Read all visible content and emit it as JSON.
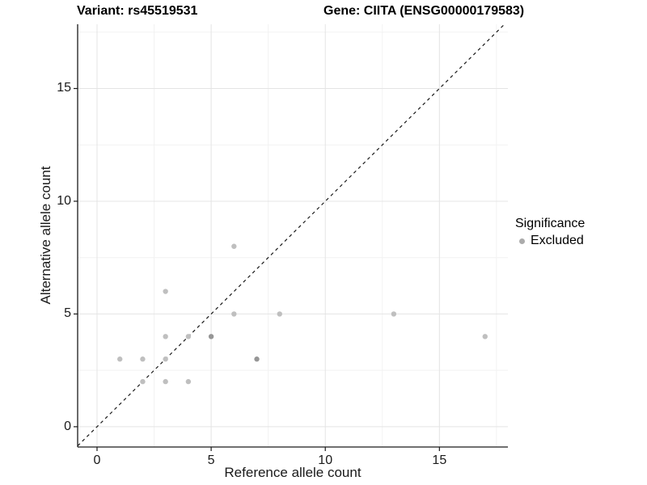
{
  "chart_data": {
    "type": "scatter",
    "title_left": "Variant: rs45519531",
    "title_right": "Gene: CIITA (ENSG00000179583)",
    "xlabel": "Reference allele count",
    "ylabel": "Alternative allele count",
    "xlim": [
      -0.85,
      18.0
    ],
    "ylim": [
      -0.9,
      17.85
    ],
    "x_ticks": [
      0,
      5,
      10,
      15
    ],
    "y_ticks": [
      0,
      5,
      10,
      15
    ],
    "x_minor": [
      2.5,
      7.5,
      12.5,
      17.5
    ],
    "y_minor": [
      2.5,
      7.5,
      12.5,
      17.5
    ],
    "grid": "major and minor gridlines on white background",
    "identity_line": {
      "slope": 1,
      "intercept": 0,
      "style": "dashed",
      "color": "#1a1a1a"
    },
    "series": [
      {
        "name": "Excluded",
        "color": "#bfbfbf",
        "overlap_color": "#969696",
        "points": [
          {
            "x": 1,
            "y": 3,
            "n": 1
          },
          {
            "x": 2,
            "y": 2,
            "n": 1
          },
          {
            "x": 2,
            "y": 3,
            "n": 1
          },
          {
            "x": 3,
            "y": 2,
            "n": 1
          },
          {
            "x": 3,
            "y": 3,
            "n": 1
          },
          {
            "x": 3,
            "y": 4,
            "n": 1
          },
          {
            "x": 3,
            "y": 6,
            "n": 1
          },
          {
            "x": 4,
            "y": 2,
            "n": 1
          },
          {
            "x": 4,
            "y": 4,
            "n": 1
          },
          {
            "x": 5,
            "y": 4,
            "n": 2
          },
          {
            "x": 6,
            "y": 5,
            "n": 1
          },
          {
            "x": 6,
            "y": 8,
            "n": 1
          },
          {
            "x": 7,
            "y": 3,
            "n": 2
          },
          {
            "x": 8,
            "y": 5,
            "n": 1
          },
          {
            "x": 13,
            "y": 5,
            "n": 1
          },
          {
            "x": 17,
            "y": 4,
            "n": 1
          }
        ]
      }
    ],
    "legend": {
      "position": "right",
      "title": "Significance",
      "items": [
        {
          "label": "Excluded",
          "marker_color": "#ababab"
        }
      ]
    },
    "colors": {
      "grid_major": "#e4e4e4",
      "grid_minor": "#f2f2f2",
      "axis": "#1a1a1a",
      "point_default": "#bfbfbf",
      "point_overlap": "#969696"
    }
  }
}
